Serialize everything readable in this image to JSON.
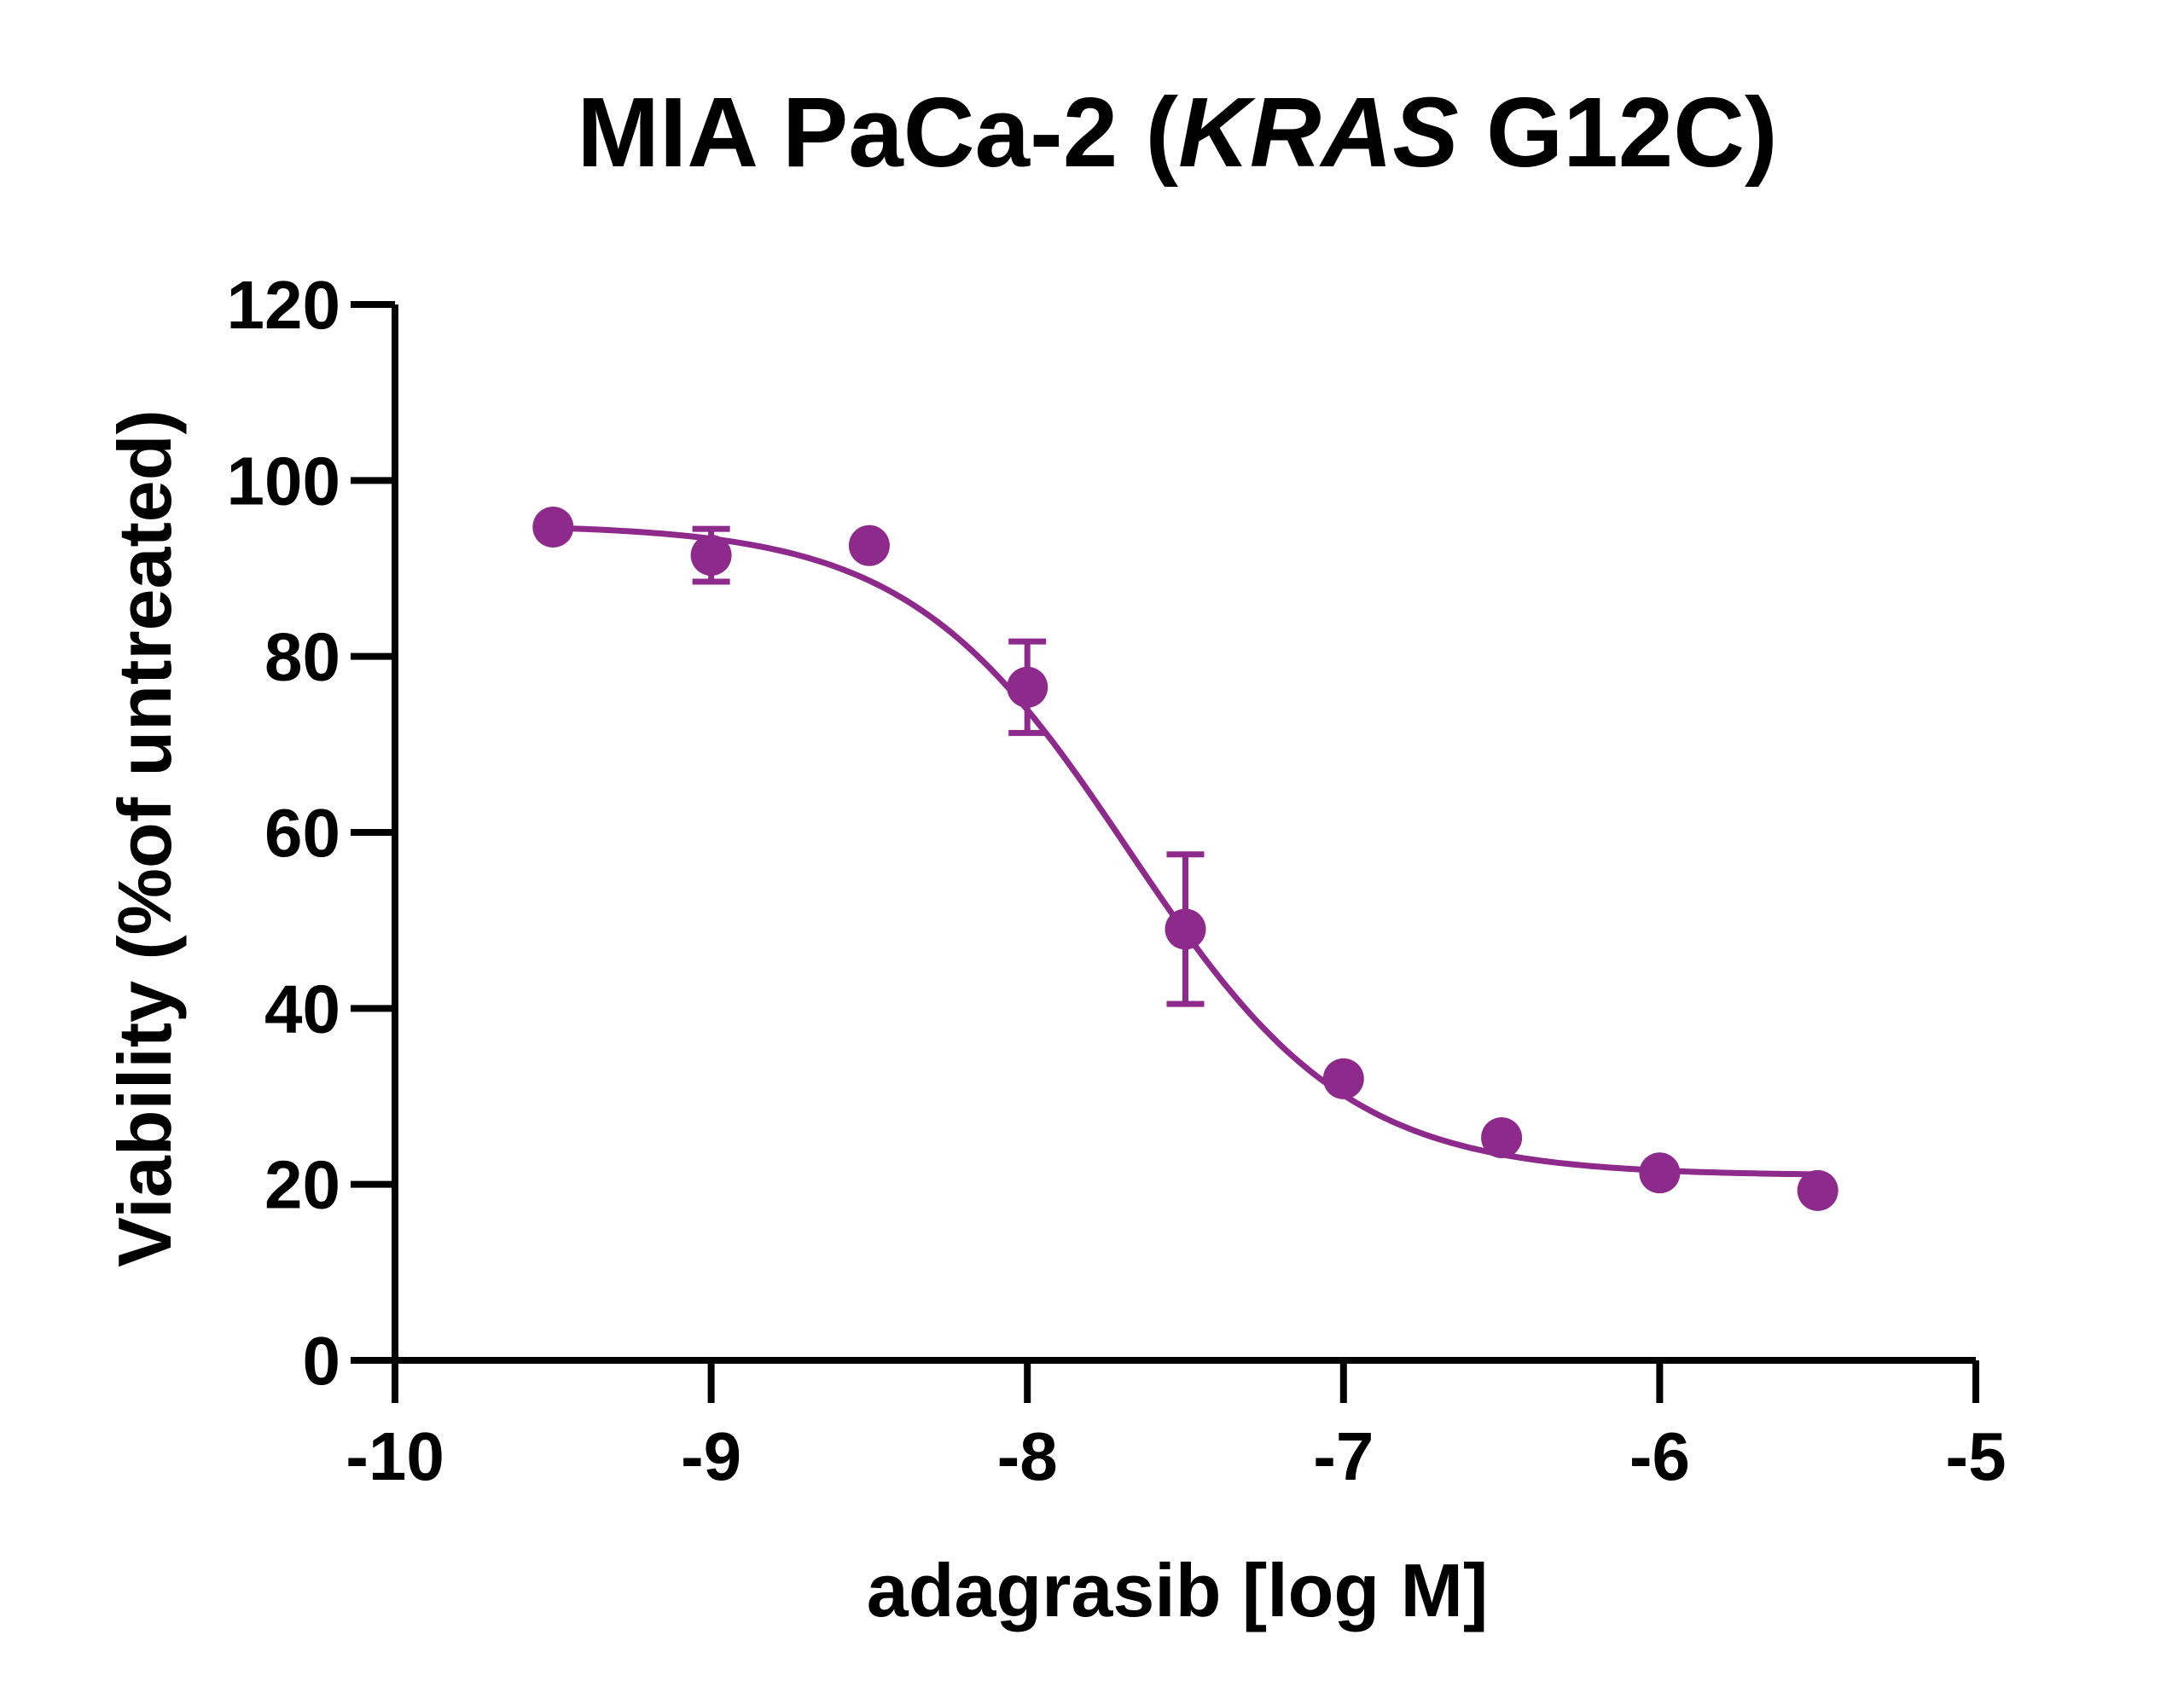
{
  "chart_data": {
    "type": "scatter",
    "title": {
      "prefix": "MIA PaCa-2 (",
      "italic": "KRAS",
      "suffix": " G12C)"
    },
    "xlabel": "adagrasib [log M]",
    "ylabel": "Viability (%of untreated)",
    "xlim": [
      -10,
      -5
    ],
    "ylim": [
      0,
      120
    ],
    "xticks": [
      -10,
      -9,
      -8,
      -7,
      -6,
      -5
    ],
    "yticks": [
      0,
      20,
      40,
      60,
      80,
      100,
      120
    ],
    "xtick_labels": [
      "-10",
      "-9",
      "-8",
      "-7",
      "-6",
      "-5"
    ],
    "ytick_labels": [
      "0",
      "20",
      "40",
      "60",
      "80",
      "100",
      "120"
    ],
    "grid": false,
    "color": "#8E2A8C",
    "series": [
      {
        "x": [
          -9.5,
          -9.0,
          -8.5,
          -8.0,
          -7.5,
          -7.0,
          -6.5,
          -6.0,
          -5.5
        ],
        "y": [
          94.7,
          91.5,
          92.6,
          76.5,
          49.0,
          32.0,
          25.3,
          21.3,
          19.3
        ],
        "error": [
          0,
          3.0,
          0,
          5.2,
          8.5,
          0,
          0,
          0,
          0
        ]
      }
    ],
    "fit": {
      "model": "4PL",
      "top": 95.0,
      "bottom": 21.0,
      "logIC50": -7.68,
      "hill": 1.25
    }
  }
}
